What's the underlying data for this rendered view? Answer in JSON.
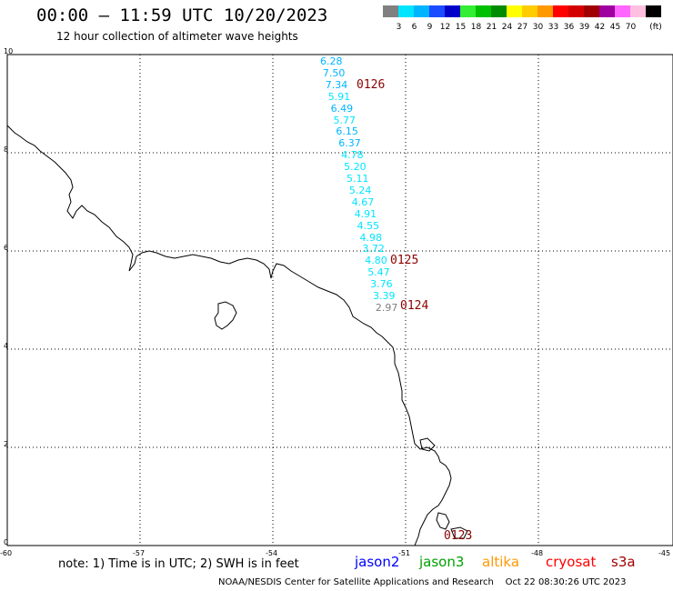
{
  "header": {
    "title": "00:00 – 11:59 UTC 10/20/2023",
    "subtitle": "12 hour collection of altimeter wave heights"
  },
  "legend": {
    "unit": "(ft)",
    "items": [
      {
        "color": "#808080",
        "label": ""
      },
      {
        "color": "#00e5ff",
        "label": "3"
      },
      {
        "color": "#00b4ff",
        "label": "6"
      },
      {
        "color": "#1a4cff",
        "label": "9"
      },
      {
        "color": "#0000c8",
        "label": "12"
      },
      {
        "color": "#33ee33",
        "label": "15"
      },
      {
        "color": "#00c000",
        "label": "18"
      },
      {
        "color": "#008c00",
        "label": "21"
      },
      {
        "color": "#ffff00",
        "label": "24"
      },
      {
        "color": "#ffcc00",
        "label": "27"
      },
      {
        "color": "#ff9900",
        "label": "30"
      },
      {
        "color": "#ff0000",
        "label": "33"
      },
      {
        "color": "#d40000",
        "label": "36"
      },
      {
        "color": "#a00000",
        "label": "39"
      },
      {
        "color": "#a000a0",
        "label": "42"
      },
      {
        "color": "#ff66ff",
        "label": "45"
      },
      {
        "color": "#ffc0e0",
        "label": "70"
      },
      {
        "color": "#000000",
        "label": ""
      }
    ]
  },
  "axes": {
    "y_labels": [
      "10",
      "8",
      "6",
      "4",
      "2",
      "0"
    ],
    "x_labels": [
      "-60",
      "-57",
      "-54",
      "-51",
      "-48",
      "-45"
    ]
  },
  "observations": [
    {
      "value": "6.28",
      "color": "#00b4ff"
    },
    {
      "value": "7.50",
      "color": "#00b4ff"
    },
    {
      "value": "7.34",
      "color": "#00b4ff"
    },
    {
      "value": "5.91",
      "color": "#00e5ff"
    },
    {
      "value": "6.49",
      "color": "#00b4ff"
    },
    {
      "value": "5.77",
      "color": "#00e5ff"
    },
    {
      "value": "6.15",
      "color": "#00b4ff"
    },
    {
      "value": "6.37",
      "color": "#00b4ff"
    },
    {
      "value": "4.78",
      "color": "#00e5ff"
    },
    {
      "value": "5.20",
      "color": "#00e5ff"
    },
    {
      "value": "5.11",
      "color": "#00e5ff"
    },
    {
      "value": "5.24",
      "color": "#00e5ff"
    },
    {
      "value": "4.67",
      "color": "#00e5ff"
    },
    {
      "value": "4.91",
      "color": "#00e5ff"
    },
    {
      "value": "4.55",
      "color": "#00e5ff"
    },
    {
      "value": "4.98",
      "color": "#00e5ff"
    },
    {
      "value": "3.72",
      "color": "#00e5ff"
    },
    {
      "value": "4.80",
      "color": "#00e5ff"
    },
    {
      "value": "5.47",
      "color": "#00e5ff"
    },
    {
      "value": "3.76",
      "color": "#00e5ff"
    },
    {
      "value": "3.39",
      "color": "#00e5ff"
    },
    {
      "value": "2.97",
      "color": "#808080"
    }
  ],
  "pass_labels": [
    "0126",
    "0125",
    "0124",
    "0123"
  ],
  "footer": {
    "note": "note: 1) Time is in UTC; 2) SWH is in feet",
    "satellites": [
      {
        "name": "jason2",
        "color": "#0000ff"
      },
      {
        "name": "jason3",
        "color": "#00a000"
      },
      {
        "name": "altika",
        "color": "#ff9900"
      },
      {
        "name": "cryosat",
        "color": "#ff0000"
      },
      {
        "name": "s3a",
        "color": "#a00000"
      }
    ],
    "credit": "NOAA/NESDIS Center for Satellite Applications and Research    Oct 22 08:30:26 UTC 2023"
  }
}
